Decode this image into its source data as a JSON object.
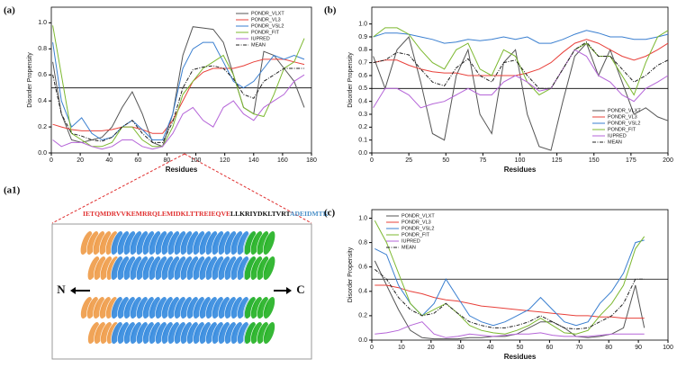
{
  "chart_data": [
    {
      "type": "line",
      "panel_label": "(a)",
      "x_label": "Residues",
      "y_label": "Disorder Propensity",
      "x": [
        1,
        7,
        14,
        21,
        28,
        35,
        42,
        49,
        56,
        63,
        70,
        77,
        84,
        91,
        98,
        105,
        112,
        119,
        126,
        133,
        140,
        147,
        154,
        161,
        168,
        175
      ],
      "xlim": [
        0,
        180
      ],
      "xticks": [
        0,
        20,
        40,
        60,
        80,
        100,
        120,
        140,
        160,
        180
      ],
      "ylim": [
        0,
        1.12
      ],
      "yticks": [
        {
          "value": 0,
          "label": "0.0"
        },
        0.2,
        0.4,
        0.6,
        0.8,
        {
          "value": 1,
          "label": "1.0"
        }
      ],
      "reference_line": 0.5,
      "legend": "upper right",
      "series": [
        {
          "name": "PONDR_VLXT",
          "color": "#555555",
          "values": [
            0.7,
            0.3,
            0.1,
            0.08,
            0.1,
            0.12,
            0.2,
            0.35,
            0.47,
            0.3,
            0.08,
            0.05,
            0.3,
            0.75,
            0.97,
            0.96,
            0.95,
            0.85,
            0.6,
            0.35,
            0.3,
            0.78,
            0.75,
            0.65,
            0.55,
            0.35
          ]
        },
        {
          "name": "PONDR_VL3",
          "color": "#e8403a",
          "values": [
            0.22,
            0.2,
            0.18,
            0.17,
            0.17,
            0.17,
            0.18,
            0.2,
            0.2,
            0.18,
            0.15,
            0.15,
            0.25,
            0.4,
            0.55,
            0.62,
            0.65,
            0.65,
            0.65,
            0.67,
            0.7,
            0.72,
            0.72,
            0.72,
            0.7,
            0.68
          ]
        },
        {
          "name": "PONDR_VSL2",
          "color": "#3a7fd0",
          "values": [
            0.85,
            0.4,
            0.2,
            0.27,
            0.15,
            0.1,
            0.12,
            0.2,
            0.25,
            0.18,
            0.1,
            0.1,
            0.3,
            0.65,
            0.8,
            0.85,
            0.85,
            0.7,
            0.55,
            0.5,
            0.55,
            0.65,
            0.75,
            0.72,
            0.75,
            0.72
          ]
        },
        {
          "name": "PONDR_FIT",
          "color": "#7cb82f",
          "values": [
            0.98,
            0.6,
            0.15,
            0.1,
            0.05,
            0.05,
            0.08,
            0.2,
            0.2,
            0.1,
            0.05,
            0.05,
            0.2,
            0.45,
            0.55,
            0.65,
            0.7,
            0.75,
            0.6,
            0.35,
            0.3,
            0.28,
            0.45,
            0.65,
            0.7,
            0.88
          ]
        },
        {
          "name": "IUPRED",
          "color": "#b565d8",
          "values": [
            0.1,
            0.05,
            0.08,
            0.08,
            0.05,
            0.03,
            0.05,
            0.1,
            0.1,
            0.05,
            0.03,
            0.05,
            0.15,
            0.3,
            0.35,
            0.25,
            0.2,
            0.35,
            0.4,
            0.3,
            0.25,
            0.35,
            0.4,
            0.45,
            0.55,
            0.6
          ]
        },
        {
          "name": "MEAN",
          "color": "#222222",
          "style": "dashdot",
          "values": [
            0.6,
            0.3,
            0.15,
            0.13,
            0.1,
            0.09,
            0.12,
            0.2,
            0.25,
            0.15,
            0.08,
            0.08,
            0.24,
            0.5,
            0.64,
            0.66,
            0.67,
            0.65,
            0.57,
            0.45,
            0.42,
            0.55,
            0.6,
            0.65,
            0.65,
            0.65
          ]
        }
      ]
    },
    {
      "type": "line",
      "panel_label": "(b)",
      "x_label": "Residues",
      "y_label": "Disorder Propensity",
      "x": [
        1,
        9,
        17,
        25,
        33,
        41,
        49,
        57,
        65,
        73,
        81,
        89,
        97,
        105,
        113,
        121,
        129,
        137,
        145,
        153,
        161,
        169,
        177,
        185,
        193,
        200
      ],
      "xlim": [
        0,
        200
      ],
      "xticks": [
        0,
        25,
        50,
        75,
        100,
        125,
        150,
        175,
        200
      ],
      "ylim": [
        0,
        1.13
      ],
      "yticks": [
        {
          "value": 0,
          "label": "0.0"
        },
        0.1,
        0.2,
        0.3,
        0.4,
        0.5,
        0.6,
        0.7,
        0.8,
        0.9,
        {
          "value": 1,
          "label": "1.0"
        }
      ],
      "reference_line": 0.5,
      "legend": "lower right",
      "series": [
        {
          "name": "PONDR_VLXT",
          "color": "#555555",
          "values": [
            0.75,
            0.5,
            0.8,
            0.9,
            0.55,
            0.15,
            0.1,
            0.6,
            0.8,
            0.3,
            0.15,
            0.7,
            0.8,
            0.3,
            0.05,
            0.02,
            0.4,
            0.75,
            0.85,
            0.6,
            0.8,
            0.55,
            0.3,
            0.35,
            0.28,
            0.25
          ]
        },
        {
          "name": "PONDR_VL3",
          "color": "#e8403a",
          "values": [
            0.7,
            0.72,
            0.72,
            0.68,
            0.65,
            0.63,
            0.62,
            0.62,
            0.6,
            0.6,
            0.6,
            0.6,
            0.6,
            0.62,
            0.65,
            0.7,
            0.78,
            0.85,
            0.88,
            0.85,
            0.8,
            0.75,
            0.72,
            0.75,
            0.8,
            0.85
          ]
        },
        {
          "name": "PONDR_VSL2",
          "color": "#3a7fd0",
          "values": [
            0.9,
            0.93,
            0.93,
            0.92,
            0.9,
            0.88,
            0.85,
            0.86,
            0.88,
            0.87,
            0.88,
            0.9,
            0.88,
            0.9,
            0.85,
            0.85,
            0.88,
            0.92,
            0.95,
            0.93,
            0.9,
            0.9,
            0.88,
            0.88,
            0.9,
            0.92
          ]
        },
        {
          "name": "PONDR_FIT",
          "color": "#7cb82f",
          "values": [
            0.9,
            0.97,
            0.97,
            0.92,
            0.8,
            0.7,
            0.65,
            0.8,
            0.85,
            0.65,
            0.6,
            0.8,
            0.75,
            0.55,
            0.45,
            0.5,
            0.65,
            0.8,
            0.85,
            0.75,
            0.75,
            0.6,
            0.45,
            0.7,
            0.9,
            0.95
          ]
        },
        {
          "name": "IUPRED",
          "color": "#b565d8",
          "values": [
            0.35,
            0.5,
            0.5,
            0.45,
            0.35,
            0.38,
            0.4,
            0.45,
            0.5,
            0.45,
            0.45,
            0.55,
            0.6,
            0.55,
            0.48,
            0.5,
            0.65,
            0.8,
            0.75,
            0.6,
            0.55,
            0.45,
            0.4,
            0.5,
            0.55,
            0.6
          ]
        },
        {
          "name": "MEAN",
          "color": "#222222",
          "style": "dashdot",
          "values": [
            0.7,
            0.72,
            0.78,
            0.76,
            0.65,
            0.55,
            0.52,
            0.66,
            0.73,
            0.6,
            0.55,
            0.7,
            0.72,
            0.6,
            0.5,
            0.5,
            0.65,
            0.8,
            0.86,
            0.75,
            0.75,
            0.65,
            0.55,
            0.6,
            0.68,
            0.72
          ]
        }
      ]
    },
    {
      "type": "line",
      "panel_label": "(c)",
      "x_label": "Residues",
      "y_label": "Disorder Propensity",
      "x": [
        1,
        5,
        9,
        13,
        17,
        21,
        25,
        29,
        33,
        37,
        41,
        45,
        49,
        53,
        57,
        61,
        65,
        69,
        73,
        77,
        81,
        85,
        89,
        92
      ],
      "xlim": [
        0,
        100
      ],
      "xticks": [
        0,
        10,
        20,
        30,
        40,
        50,
        60,
        70,
        80,
        90,
        100
      ],
      "ylim": [
        0,
        1.07
      ],
      "yticks": [
        {
          "value": 0,
          "label": "0.0"
        },
        0.2,
        0.4,
        0.6,
        0.8,
        {
          "value": 1,
          "label": "1.0"
        }
      ],
      "reference_line": 0.5,
      "legend": "upper left",
      "series": [
        {
          "name": "PONDR_VLXT",
          "color": "#555555",
          "values": [
            0.65,
            0.45,
            0.25,
            0.08,
            0.02,
            0.01,
            0.01,
            0.01,
            0.02,
            0.02,
            0.03,
            0.03,
            0.05,
            0.1,
            0.15,
            0.15,
            0.1,
            0.03,
            0.02,
            0.03,
            0.05,
            0.1,
            0.45,
            0.1
          ]
        },
        {
          "name": "PONDR_VL3",
          "color": "#e8403a",
          "values": [
            0.45,
            0.45,
            0.43,
            0.4,
            0.38,
            0.35,
            0.33,
            0.32,
            0.3,
            0.28,
            0.27,
            0.26,
            0.25,
            0.24,
            0.23,
            0.22,
            0.21,
            0.2,
            0.2,
            0.19,
            0.19,
            0.18,
            0.18,
            0.18
          ]
        },
        {
          "name": "PONDR_VSL2",
          "color": "#3a7fd0",
          "values": [
            0.75,
            0.7,
            0.45,
            0.3,
            0.2,
            0.3,
            0.5,
            0.35,
            0.2,
            0.15,
            0.12,
            0.15,
            0.2,
            0.25,
            0.35,
            0.25,
            0.15,
            0.12,
            0.15,
            0.3,
            0.4,
            0.55,
            0.8,
            0.82
          ]
        },
        {
          "name": "PONDR_FIT",
          "color": "#7cb82f",
          "values": [
            0.98,
            0.8,
            0.55,
            0.3,
            0.2,
            0.25,
            0.3,
            0.22,
            0.12,
            0.08,
            0.06,
            0.05,
            0.08,
            0.12,
            0.18,
            0.12,
            0.06,
            0.05,
            0.08,
            0.2,
            0.3,
            0.45,
            0.75,
            0.85
          ]
        },
        {
          "name": "IUPRED",
          "color": "#b565d8",
          "values": [
            0.05,
            0.06,
            0.08,
            0.12,
            0.15,
            0.05,
            0.02,
            0.03,
            0.05,
            0.04,
            0.03,
            0.04,
            0.05,
            0.05,
            0.06,
            0.04,
            0.03,
            0.03,
            0.03,
            0.04,
            0.05,
            0.05,
            0.05,
            0.05
          ]
        },
        {
          "name": "MEAN",
          "color": "#222222",
          "style": "dashdot",
          "values": [
            0.58,
            0.5,
            0.35,
            0.25,
            0.2,
            0.22,
            0.3,
            0.22,
            0.15,
            0.12,
            0.1,
            0.1,
            0.12,
            0.15,
            0.2,
            0.15,
            0.1,
            0.09,
            0.1,
            0.15,
            0.2,
            0.3,
            0.5,
            0.5
          ]
        }
      ]
    }
  ],
  "structure": {
    "panel_label": "(a1)",
    "sequence": [
      {
        "text": "IETQMDRVVKEMRRQLEMIDKLTTREIEQVE",
        "color": "#e03030"
      },
      {
        "text": "LLKRIYDKLTVRT",
        "color": "#111111"
      },
      {
        "text": "ADEIDMTK",
        "color": "#4a90c8"
      }
    ],
    "n_label": "N",
    "c_label": "C"
  }
}
